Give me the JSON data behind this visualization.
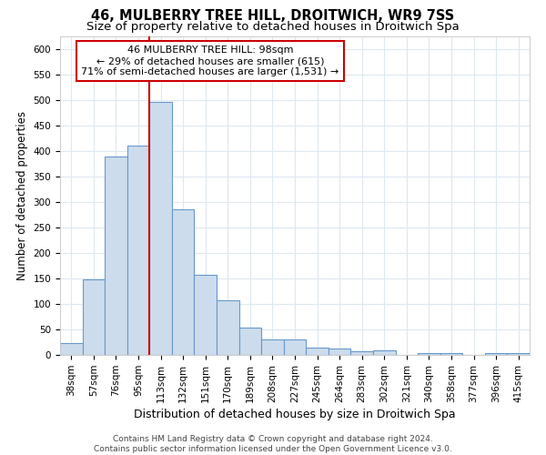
{
  "title": "46, MULBERRY TREE HILL, DROITWICH, WR9 7SS",
  "subtitle": "Size of property relative to detached houses in Droitwich Spa",
  "xlabel": "Distribution of detached houses by size in Droitwich Spa",
  "ylabel": "Number of detached properties",
  "footer_line1": "Contains HM Land Registry data © Crown copyright and database right 2024.",
  "footer_line2": "Contains public sector information licensed under the Open Government Licence v3.0.",
  "annotation_line1": "46 MULBERRY TREE HILL: 98sqm",
  "annotation_line2": "← 29% of detached houses are smaller (615)",
  "annotation_line3": "71% of semi-detached houses are larger (1,531) →",
  "bar_labels": [
    "38sqm",
    "57sqm",
    "76sqm",
    "95sqm",
    "113sqm",
    "132sqm",
    "151sqm",
    "170sqm",
    "189sqm",
    "208sqm",
    "227sqm",
    "245sqm",
    "264sqm",
    "283sqm",
    "302sqm",
    "321sqm",
    "340sqm",
    "358sqm",
    "377sqm",
    "396sqm",
    "415sqm"
  ],
  "bar_values": [
    23,
    148,
    390,
    410,
    497,
    285,
    158,
    107,
    53,
    30,
    30,
    15,
    12,
    7,
    9,
    0,
    3,
    4,
    0,
    4,
    3
  ],
  "bar_color": "#ccdcec",
  "bar_edge_color": "#6699cc",
  "vline_x": 3.5,
  "vline_color": "#cc0000",
  "ylim": [
    0,
    625
  ],
  "yticks": [
    0,
    50,
    100,
    150,
    200,
    250,
    300,
    350,
    400,
    450,
    500,
    550,
    600
  ],
  "bg_color": "#ffffff",
  "plot_bg_color": "#ffffff",
  "grid_color": "#dde8f0",
  "annotation_box_color": "#ffffff",
  "annotation_box_edge": "#cc0000",
  "title_fontsize": 10.5,
  "subtitle_fontsize": 9.5,
  "xlabel_fontsize": 9,
  "ylabel_fontsize": 8.5,
  "tick_fontsize": 7.5,
  "annotation_fontsize": 8,
  "footer_fontsize": 6.5
}
